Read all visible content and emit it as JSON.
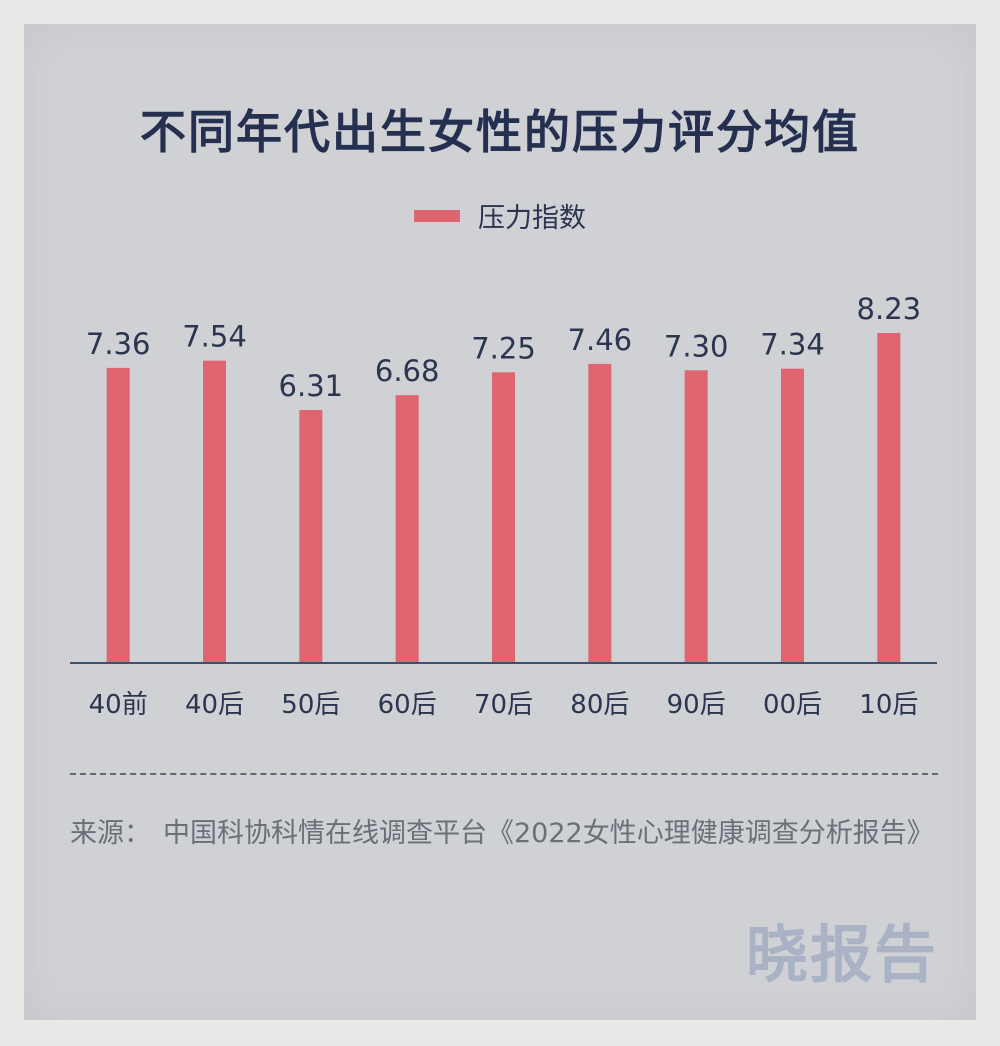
{
  "chart_data": {
    "type": "bar",
    "title": "不同年代出生女性的压力评分均值",
    "categories": [
      "40前",
      "40后",
      "50后",
      "60后",
      "70后",
      "80后",
      "90后",
      "00后",
      "10后"
    ],
    "series": [
      {
        "name": "压力指数",
        "values": [
          7.36,
          7.54,
          6.31,
          6.68,
          7.25,
          7.46,
          7.3,
          7.34,
          8.23
        ]
      }
    ],
    "value_labels": [
      "7.36",
      "7.54",
      "6.31",
      "6.68",
      "7.25",
      "7.46",
      "7.30",
      "7.34",
      "8.23"
    ],
    "xlabel": "",
    "ylabel": "",
    "ylim": [
      0,
      8.23
    ],
    "grid": false,
    "legend": "top-center",
    "bar_color": "#e06570"
  },
  "source": {
    "label": "来源：",
    "text": "中国科协科情在线调查平台《2022女性心理健康调查分析报告》"
  },
  "watermark": "晓报告"
}
